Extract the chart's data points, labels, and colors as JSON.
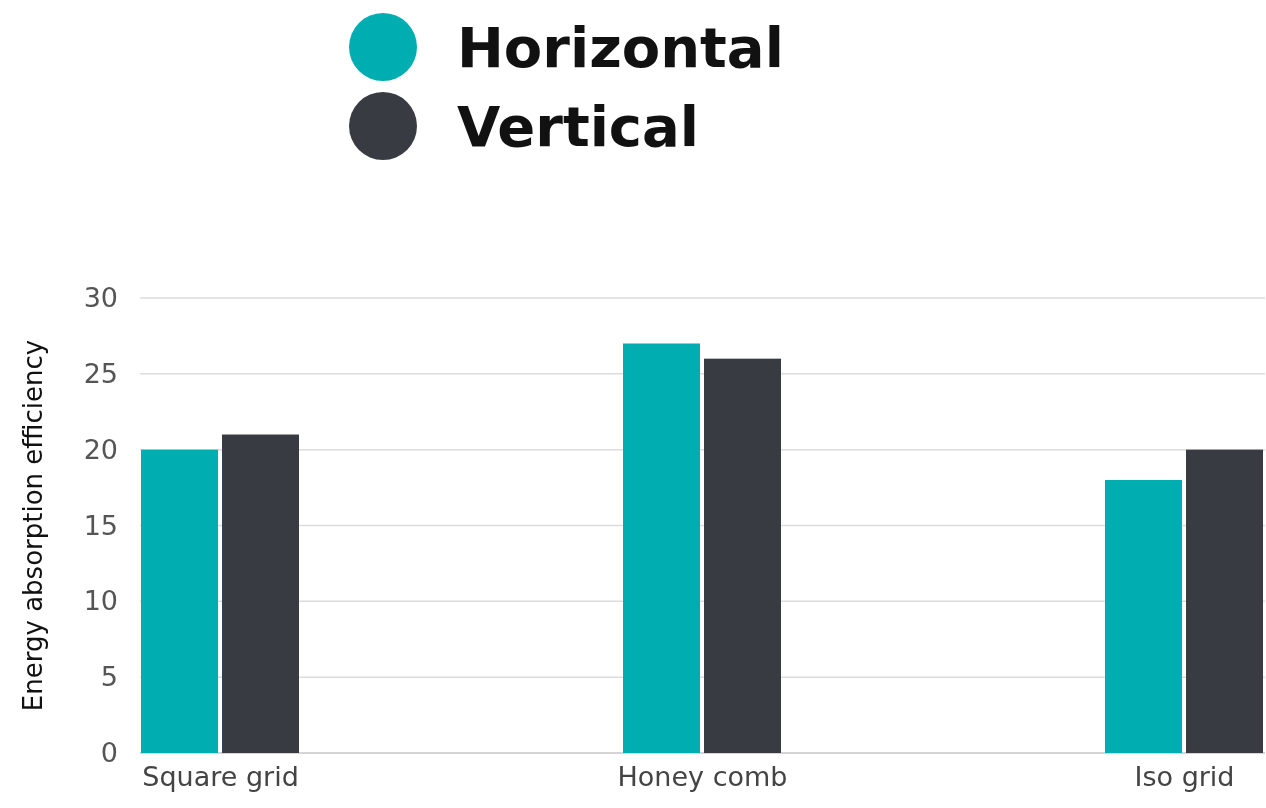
{
  "chart_data": {
    "type": "bar",
    "ylabel": "Energy absorption efficiency",
    "categories": [
      "Square grid",
      "Honey comb",
      "Iso grid"
    ],
    "series": [
      {
        "name": "Horizontal",
        "color": "#00adb0",
        "values": [
          20,
          27,
          18
        ]
      },
      {
        "name": "Vertical",
        "color": "#383b42",
        "values": [
          21,
          26,
          20
        ]
      }
    ],
    "ylim": [
      0,
      30
    ],
    "yticks": [
      0,
      5,
      10,
      15,
      20,
      25,
      30
    ],
    "grid": "y",
    "legend": "top"
  }
}
